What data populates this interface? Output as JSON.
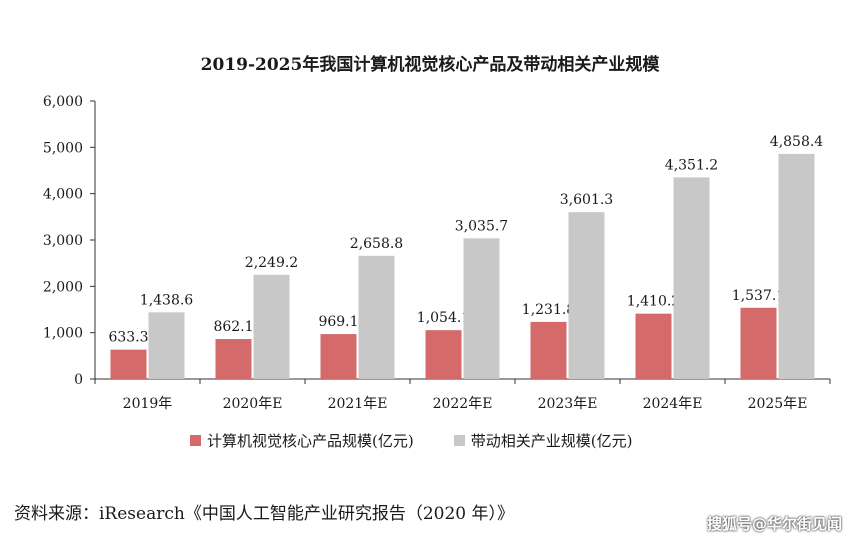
{
  "chart_data": {
    "type": "bar",
    "title": "2019-2025年我国计算机视觉核心产品及带动相关产业规模",
    "categories": [
      "2019年",
      "2020年E",
      "2021年E",
      "2022年E",
      "2023年E",
      "2024年E",
      "2025年E"
    ],
    "series": [
      {
        "name": "计算机视觉核心产品规模(亿元)",
        "color": "#d46a6a",
        "values": [
          633.3,
          862.1,
          969.1,
          1054.1,
          1231.8,
          1410.2,
          1537.1
        ],
        "labels": [
          "633.3",
          "862.1",
          "969.1",
          "1,054.1",
          "1,231.8",
          "1,410.2",
          "1,537.1"
        ]
      },
      {
        "name": "带动相关产业规模(亿元)",
        "color": "#c8c8c8",
        "values": [
          1438.6,
          2249.2,
          2658.8,
          3035.7,
          3601.3,
          4351.2,
          4858.4
        ],
        "labels": [
          "1,438.6",
          "2,249.2",
          "2,658.8",
          "3,035.7",
          "3,601.3",
          "4,351.2",
          "4,858.4"
        ]
      }
    ],
    "ylim": [
      0,
      6000
    ],
    "yticks": [
      0,
      1000,
      2000,
      3000,
      4000,
      5000,
      6000
    ],
    "ytick_labels": [
      "0",
      "1,000",
      "2,000",
      "3,000",
      "4,000",
      "5,000",
      "6,000"
    ],
    "grid": false,
    "legend": "bottom"
  },
  "source": "资料来源：iResearch《中国人工智能产业研究报告（2020 年）》",
  "watermark": "搜狐号@华尔街见闻"
}
